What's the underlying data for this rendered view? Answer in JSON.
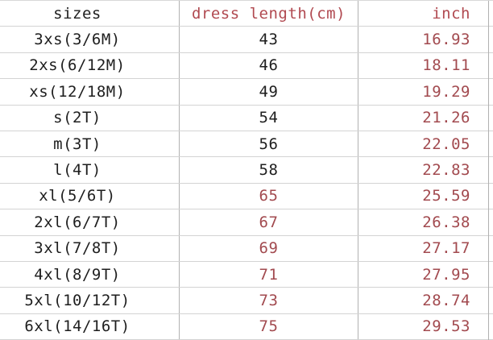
{
  "colors": {
    "background": "#ffffff",
    "text_black": "#1e1e1e",
    "header_red": "#b14a51",
    "value_red": "#a24a4f",
    "grid_horizontal": "#d3d3d3",
    "grid_vertical": "#b1b1b1"
  },
  "table": {
    "headers": {
      "sizes": "sizes",
      "cm": "dress length(cm)",
      "inch": "inch"
    },
    "rows": [
      {
        "size": "3xs(3/6M)",
        "cm": "43",
        "inch": "16.93"
      },
      {
        "size": "2xs(6/12M)",
        "cm": "46",
        "inch": "18.11"
      },
      {
        "size": "xs(12/18M)",
        "cm": "49",
        "inch": "19.29"
      },
      {
        "size": "s(2T)",
        "cm": "54",
        "inch": "21.26"
      },
      {
        "size": "m(3T)",
        "cm": "56",
        "inch": "22.05"
      },
      {
        "size": "l(4T)",
        "cm": "58",
        "inch": "22.83"
      },
      {
        "size": "xl(5/6T)",
        "cm": "65",
        "inch": "25.59"
      },
      {
        "size": "2xl(6/7T)",
        "cm": "67",
        "inch": "26.38"
      },
      {
        "size": "3xl(7/8T)",
        "cm": "69",
        "inch": "27.17"
      },
      {
        "size": "4xl(8/9T)",
        "cm": "71",
        "inch": "27.95"
      },
      {
        "size": "5xl(10/12T)",
        "cm": "73",
        "inch": "28.74"
      },
      {
        "size": "6xl(14/16T)",
        "cm": "75",
        "inch": "29.53"
      }
    ]
  }
}
